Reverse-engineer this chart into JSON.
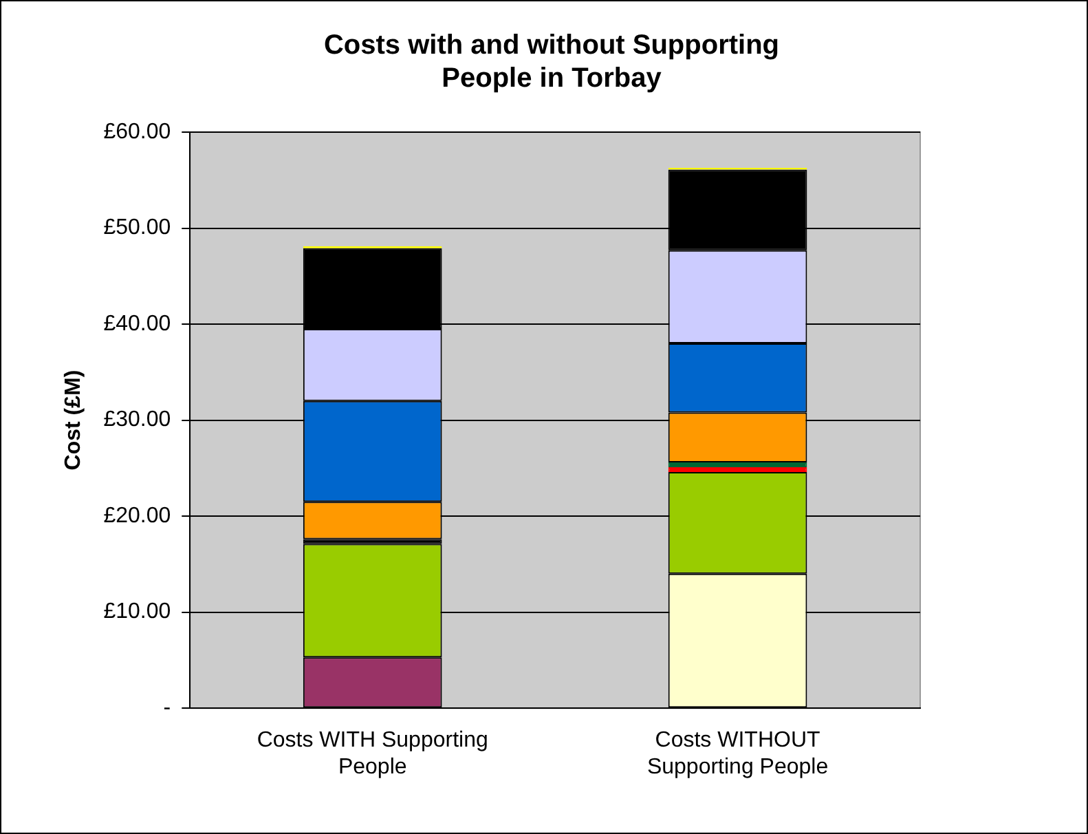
{
  "chart_data": {
    "type": "bar",
    "title": "Costs with and without Supporting People in Torbay",
    "ylabel": "Cost (£M)",
    "categories": [
      "Costs WITH Supporting People",
      "Costs WITHOUT Supporting People"
    ],
    "stacked": true,
    "grid": "y",
    "legend": false,
    "ylim": [
      0,
      60
    ],
    "yticks": [
      {
        "value": 0,
        "label": "-"
      },
      {
        "value": 10,
        "label": "£10.00"
      },
      {
        "value": 20,
        "label": "£20.00"
      },
      {
        "value": 30,
        "label": "£30.00"
      },
      {
        "value": 40,
        "label": "£40.00"
      },
      {
        "value": 50,
        "label": "£50.00"
      },
      {
        "value": 60,
        "label": "£60.00"
      }
    ],
    "series": [
      {
        "color": "#993366",
        "values": [
          5.3,
          0
        ]
      },
      {
        "color": "#ffffcc",
        "values": [
          0,
          14.0
        ]
      },
      {
        "color": "#99cc00",
        "values": [
          11.8,
          10.6
        ]
      },
      {
        "color": "#ff0000",
        "values": [
          0,
          0.5
        ]
      },
      {
        "color": "#000000",
        "values": [
          0.5,
          0
        ]
      },
      {
        "color": "#006633",
        "values": [
          0,
          0.5
        ]
      },
      {
        "color": "#ff9900",
        "values": [
          3.9,
          5.2
        ]
      },
      {
        "color": "#0066cc",
        "values": [
          10.5,
          7.2
        ]
      },
      {
        "color": "#ccccff",
        "values": [
          7.5,
          9.7
        ]
      },
      {
        "color": "#000000",
        "values": [
          8.4,
          8.4
        ]
      },
      {
        "color": "#ffff00",
        "values": [
          0.2,
          0.2
        ]
      }
    ]
  }
}
